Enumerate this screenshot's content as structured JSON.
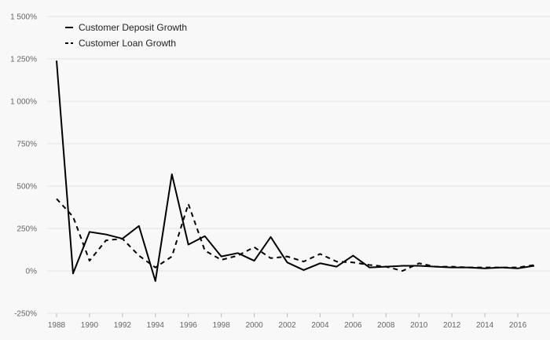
{
  "chart_data": {
    "type": "line",
    "title": "",
    "xlabel": "",
    "ylabel": "",
    "x": [
      1988,
      1989,
      1990,
      1991,
      1992,
      1993,
      1994,
      1995,
      1996,
      1997,
      1998,
      1999,
      2000,
      2001,
      2002,
      2003,
      2004,
      2005,
      2006,
      2007,
      2008,
      2009,
      2010,
      2011,
      2012,
      2013,
      2014,
      2015,
      2016,
      2017
    ],
    "x_tick_labels": [
      "1988",
      "1990",
      "1992",
      "1994",
      "1996",
      "1998",
      "2000",
      "2002",
      "2004",
      "2006",
      "2008",
      "2010",
      "2012",
      "2014",
      "2016"
    ],
    "xlim": [
      1988,
      2017
    ],
    "ylim": [
      -250,
      1500
    ],
    "y_ticks": [
      -250,
      0,
      250,
      500,
      750,
      1000,
      1250,
      1500
    ],
    "y_tick_labels": [
      "-250%",
      "0%",
      "250%",
      "500%",
      "750%",
      "1 000%",
      "1 250%",
      "1 500%"
    ],
    "grid": true,
    "legend_position": "top-left",
    "series": [
      {
        "name": "Customer Deposit Growth",
        "style": "solid",
        "color": "#000000",
        "values": [
          1240,
          -15,
          230,
          215,
          190,
          265,
          -60,
          570,
          155,
          205,
          85,
          105,
          60,
          200,
          50,
          5,
          45,
          25,
          90,
          20,
          25,
          30,
          30,
          25,
          20,
          20,
          15,
          20,
          15,
          30
        ]
      },
      {
        "name": "Customer Loan Growth",
        "style": "dashed",
        "color": "#000000",
        "values": [
          425,
          320,
          60,
          180,
          190,
          90,
          20,
          85,
          395,
          120,
          65,
          90,
          140,
          75,
          85,
          55,
          100,
          55,
          50,
          35,
          25,
          0,
          45,
          25,
          25,
          20,
          20,
          20,
          20,
          35
        ]
      }
    ]
  }
}
